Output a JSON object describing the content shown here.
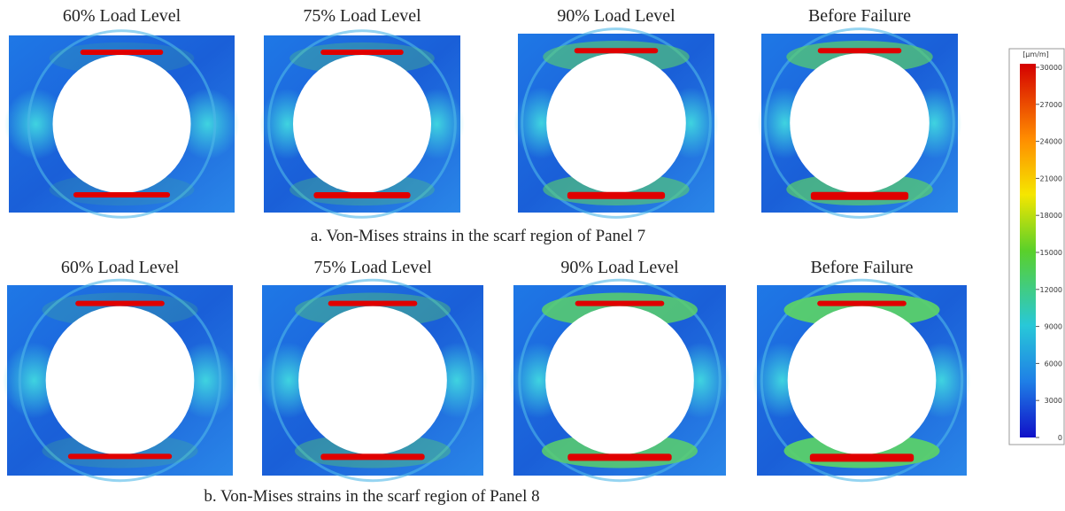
{
  "rows": [
    {
      "panels": [
        {
          "title": "60% Load Level"
        },
        {
          "title": "75% Load Level"
        },
        {
          "title": "90% Load Level"
        },
        {
          "title": "Before Failure"
        }
      ],
      "caption": "a. Von-Mises strains in the scarf region of Panel 7"
    },
    {
      "panels": [
        {
          "title": "60% Load Level"
        },
        {
          "title": "75% Load Level"
        },
        {
          "title": "90% Load Level"
        },
        {
          "title": "Before Failure"
        }
      ],
      "caption": "b. Von-Mises strains in the scarf region of Panel 8"
    }
  ],
  "colorbar": {
    "unit": "[µm/m]",
    "ticks": [
      30000,
      27000,
      24000,
      21000,
      18000,
      15000,
      12000,
      9000,
      6000,
      3000,
      0
    ]
  }
}
